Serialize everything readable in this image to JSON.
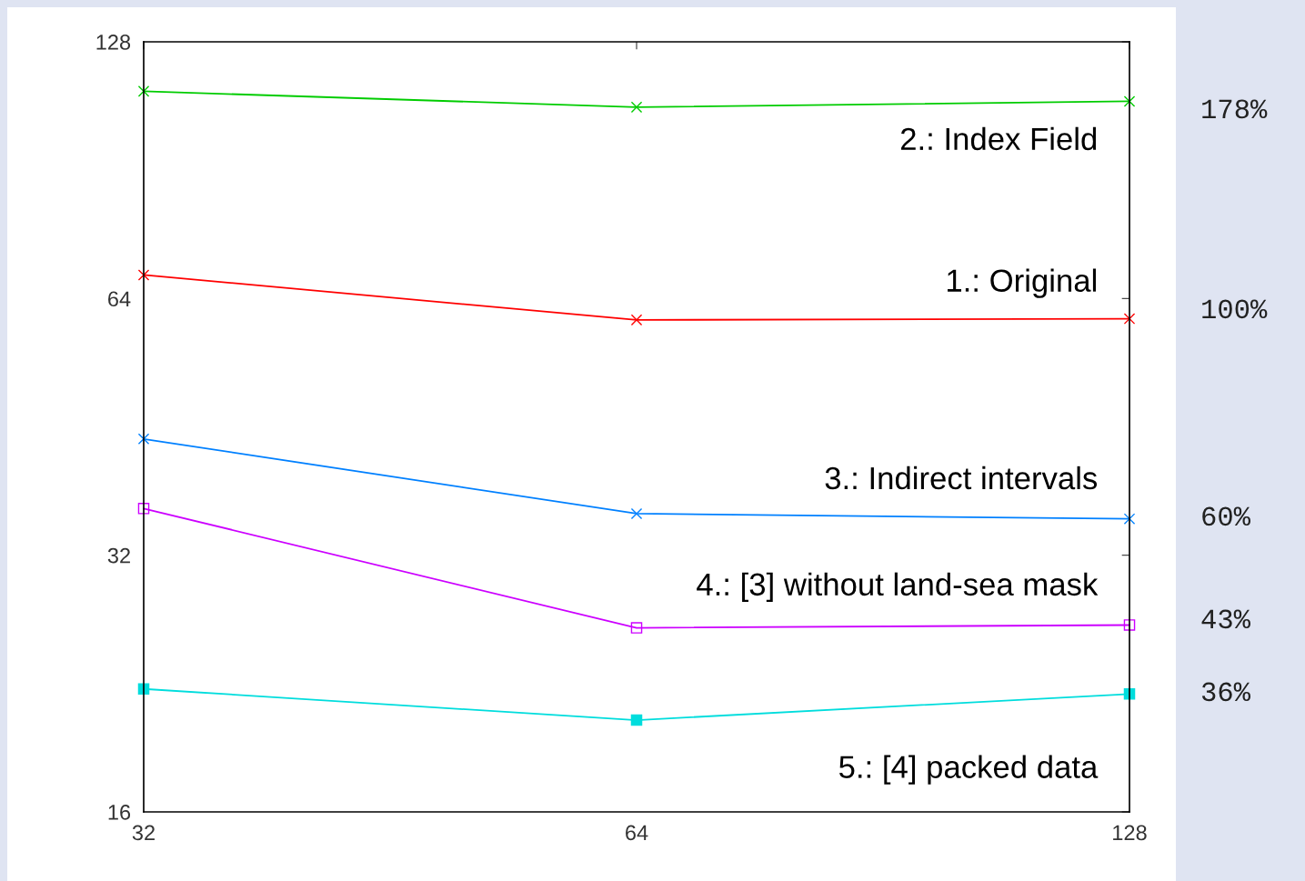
{
  "chart_data": {
    "type": "line",
    "log": "xy",
    "x": [
      32,
      64,
      128
    ],
    "xlim": [
      32,
      128
    ],
    "xticks": [
      32,
      64,
      128
    ],
    "ylim": [
      16,
      128
    ],
    "yticks": [
      16,
      32,
      64,
      128
    ],
    "grid": false,
    "legend": false,
    "series": [
      {
        "name": "1.: Original",
        "color": "#ff0000",
        "values": [
          68.2,
          60.4,
          60.6
        ],
        "marker": "cross"
      },
      {
        "name": "2.: Index Field",
        "color": "#00cc00",
        "values": [
          112,
          107.3,
          109
        ],
        "marker": "cross"
      },
      {
        "name": "3.: Indirect intervals",
        "color": "#0080ff",
        "values": [
          43.8,
          35.8,
          35.3
        ],
        "marker": "cross"
      },
      {
        "name": "4.: [3] without land-sea mask",
        "color": "#cc00ff",
        "values": [
          36.3,
          26.3,
          26.5
        ],
        "marker": "square"
      },
      {
        "name": "5.: [4] packed data",
        "color": "#00dddd",
        "values": [
          22.3,
          20.5,
          22.0
        ],
        "marker": "square"
      }
    ],
    "annotations": [
      "178%",
      "100%",
      "60%",
      "43%",
      "36%"
    ]
  }
}
